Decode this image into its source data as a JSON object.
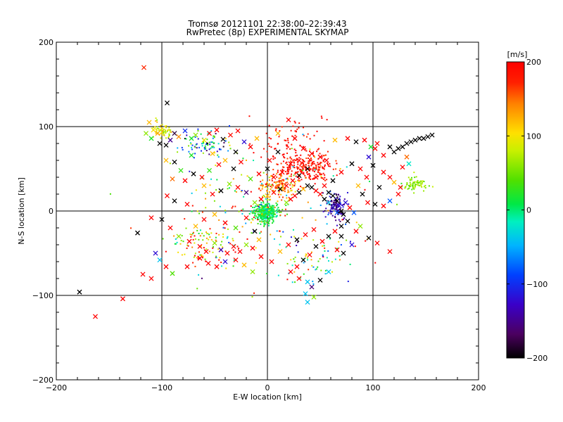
{
  "chart_data": {
    "type": "scatter",
    "title": "Tromsø 20121101 22:38:00–22:39:43",
    "subtitle": "RwPretec (8p) EXPERIMENTAL SKYMAP",
    "xlabel": "E-W location [km]",
    "ylabel": "N-S location [km]",
    "xlim": [
      -200,
      200
    ],
    "ylim": [
      -200,
      200
    ],
    "x_ticks": [
      "−200",
      "−100",
      "0",
      "100",
      "200"
    ],
    "y_ticks": [
      "−200",
      "−100",
      "0",
      "100",
      "200"
    ],
    "grid": true,
    "colorbar": {
      "label": "[m/s]",
      "range": [
        -200,
        200
      ],
      "ticks": [
        "200",
        "100",
        "0",
        "−100",
        "−200"
      ],
      "colormap": "rainbow black-purple-blue-cyan-green-yellow-red"
    },
    "markers": {
      "large": "x",
      "small": "dot"
    },
    "points": [
      [
        -117,
        170,
        170,
        1
      ],
      [
        -178,
        -96,
        -200,
        1
      ],
      [
        -163,
        -125,
        200,
        1
      ],
      [
        -137,
        -104,
        200,
        1
      ],
      [
        -123,
        -26,
        -200,
        1
      ],
      [
        -118,
        -75,
        200,
        1
      ],
      [
        -110,
        -80,
        200,
        1
      ],
      [
        -95,
        128,
        -200,
        1
      ],
      [
        -112,
        105,
        120,
        1
      ],
      [
        -108,
        96,
        100,
        1
      ],
      [
        -115,
        92,
        60,
        1
      ],
      [
        -104,
        92,
        130,
        1
      ],
      [
        -102,
        80,
        -200,
        1
      ],
      [
        -96,
        78,
        -200,
        1
      ],
      [
        -110,
        86,
        20,
        1
      ],
      [
        -92,
        84,
        -150,
        1
      ],
      [
        -88,
        92,
        -180,
        1
      ],
      [
        -84,
        88,
        140,
        1
      ],
      [
        -78,
        95,
        -100,
        1
      ],
      [
        -72,
        86,
        20,
        1
      ],
      [
        -68,
        90,
        60,
        1
      ],
      [
        -60,
        84,
        100,
        1
      ],
      [
        -55,
        92,
        200,
        1
      ],
      [
        -48,
        96,
        200,
        1
      ],
      [
        -42,
        85,
        -200,
        1
      ],
      [
        -35,
        90,
        190,
        1
      ],
      [
        -28,
        95,
        200,
        1
      ],
      [
        -22,
        82,
        -120,
        1
      ],
      [
        -96,
        60,
        120,
        1
      ],
      [
        -88,
        58,
        -200,
        1
      ],
      [
        -82,
        48,
        30,
        1
      ],
      [
        -90,
        38,
        150,
        1
      ],
      [
        -78,
        36,
        200,
        1
      ],
      [
        -70,
        44,
        -200,
        1
      ],
      [
        -62,
        40,
        200,
        1
      ],
      [
        -55,
        48,
        30,
        1
      ],
      [
        -46,
        55,
        200,
        1
      ],
      [
        -40,
        60,
        120,
        1
      ],
      [
        -32,
        50,
        -200,
        1
      ],
      [
        -25,
        58,
        200,
        1
      ],
      [
        -60,
        30,
        120,
        1
      ],
      [
        -52,
        20,
        200,
        1
      ],
      [
        -44,
        24,
        -200,
        1
      ],
      [
        -36,
        32,
        60,
        1
      ],
      [
        -28,
        28,
        200,
        1
      ],
      [
        -20,
        22,
        -160,
        1
      ],
      [
        -95,
        18,
        200,
        1
      ],
      [
        -88,
        12,
        -200,
        1
      ],
      [
        -76,
        8,
        200,
        1
      ],
      [
        -110,
        -8,
        200,
        1
      ],
      [
        -100,
        -10,
        -200,
        1
      ],
      [
        -92,
        -20,
        200,
        1
      ],
      [
        -84,
        -30,
        60,
        1
      ],
      [
        -74,
        -36,
        200,
        1
      ],
      [
        -64,
        -42,
        200,
        1
      ],
      [
        -58,
        -48,
        200,
        1
      ],
      [
        -50,
        -38,
        60,
        1
      ],
      [
        -44,
        -46,
        -140,
        1
      ],
      [
        -38,
        -50,
        200,
        1
      ],
      [
        -32,
        -42,
        200,
        1
      ],
      [
        -26,
        -48,
        200,
        1
      ],
      [
        -20,
        -40,
        60,
        1
      ],
      [
        -14,
        -44,
        200,
        1
      ],
      [
        -8,
        -34,
        120,
        1
      ],
      [
        -64,
        -56,
        200,
        1
      ],
      [
        -56,
        -62,
        200,
        1
      ],
      [
        -48,
        -66,
        200,
        1
      ],
      [
        -40,
        -60,
        -120,
        1
      ],
      [
        -30,
        -58,
        200,
        1
      ],
      [
        -22,
        -64,
        120,
        1
      ],
      [
        -14,
        -72,
        60,
        1
      ],
      [
        -76,
        -66,
        200,
        1
      ],
      [
        -96,
        -66,
        200,
        1
      ],
      [
        -102,
        -58,
        -40,
        1
      ],
      [
        -90,
        -74,
        40,
        1
      ],
      [
        -106,
        -50,
        -120,
        1
      ],
      [
        -60,
        -10,
        200,
        1
      ],
      [
        -50,
        -4,
        120,
        1
      ],
      [
        -40,
        -14,
        200,
        1
      ],
      [
        -30,
        -20,
        40,
        1
      ],
      [
        -20,
        -8,
        200,
        1
      ],
      [
        -12,
        -24,
        -200,
        1
      ],
      [
        -68,
        -18,
        120,
        1
      ],
      [
        -72,
        66,
        20,
        1
      ],
      [
        -52,
        68,
        120,
        1
      ],
      [
        -30,
        70,
        -200,
        1
      ],
      [
        -16,
        76,
        200,
        1
      ],
      [
        -10,
        86,
        120,
        1
      ],
      [
        10,
        92,
        120,
        1
      ],
      [
        20,
        108,
        200,
        1
      ],
      [
        26,
        86,
        200,
        1
      ],
      [
        34,
        74,
        200,
        1
      ],
      [
        42,
        68,
        200,
        1
      ],
      [
        50,
        64,
        200,
        1
      ],
      [
        56,
        60,
        200,
        1
      ],
      [
        30,
        60,
        200,
        1
      ],
      [
        22,
        56,
        200,
        1
      ],
      [
        14,
        46,
        200,
        1
      ],
      [
        38,
        50,
        -200,
        1
      ],
      [
        46,
        40,
        200,
        1
      ],
      [
        54,
        30,
        200,
        1
      ],
      [
        62,
        36,
        -200,
        1
      ],
      [
        70,
        46,
        200,
        1
      ],
      [
        80,
        56,
        -200,
        1
      ],
      [
        88,
        50,
        200,
        1
      ],
      [
        96,
        64,
        -120,
        1
      ],
      [
        102,
        74,
        200,
        1
      ],
      [
        110,
        66,
        200,
        1
      ],
      [
        116,
        76,
        -200,
        1
      ],
      [
        120,
        70,
        -200,
        1
      ],
      [
        124,
        74,
        -200,
        1
      ],
      [
        128,
        76,
        -200,
        1
      ],
      [
        132,
        80,
        -200,
        1
      ],
      [
        136,
        82,
        -200,
        1
      ],
      [
        140,
        84,
        -200,
        1
      ],
      [
        144,
        86,
        -200,
        1
      ],
      [
        148,
        86,
        -200,
        1
      ],
      [
        152,
        88,
        -200,
        1
      ],
      [
        156,
        90,
        -200,
        1
      ],
      [
        98,
        76,
        20,
        1
      ],
      [
        104,
        80,
        200,
        1
      ],
      [
        92,
        84,
        200,
        1
      ],
      [
        84,
        82,
        -200,
        1
      ],
      [
        76,
        86,
        200,
        1
      ],
      [
        64,
        84,
        120,
        1
      ],
      [
        132,
        64,
        150,
        1
      ],
      [
        134,
        56,
        -20,
        1
      ],
      [
        106,
        28,
        -200,
        1
      ],
      [
        102,
        8,
        -200,
        1
      ],
      [
        110,
        6,
        200,
        1
      ],
      [
        116,
        12,
        -80,
        1
      ],
      [
        124,
        20,
        200,
        1
      ],
      [
        58,
        22,
        -200,
        1
      ],
      [
        62,
        18,
        -200,
        1
      ],
      [
        66,
        12,
        -200,
        1
      ],
      [
        68,
        6,
        -120,
        1
      ],
      [
        70,
        0,
        -200,
        1
      ],
      [
        72,
        -4,
        -200,
        1
      ],
      [
        66,
        -2,
        -80,
        1
      ],
      [
        62,
        4,
        -120,
        1
      ],
      [
        58,
        10,
        -40,
        1
      ],
      [
        54,
        14,
        -200,
        1
      ],
      [
        50,
        20,
        200,
        1
      ],
      [
        46,
        24,
        200,
        1
      ],
      [
        42,
        28,
        -200,
        1
      ],
      [
        38,
        30,
        -200,
        1
      ],
      [
        34,
        26,
        120,
        1
      ],
      [
        30,
        22,
        -200,
        1
      ],
      [
        26,
        18,
        200,
        1
      ],
      [
        22,
        14,
        200,
        1
      ],
      [
        18,
        10,
        60,
        1
      ],
      [
        74,
        10,
        -120,
        1
      ],
      [
        78,
        4,
        200,
        1
      ],
      [
        82,
        -2,
        -80,
        1
      ],
      [
        76,
        -12,
        -200,
        1
      ],
      [
        70,
        -18,
        -200,
        1
      ],
      [
        64,
        -24,
        200,
        1
      ],
      [
        58,
        -30,
        -200,
        1
      ],
      [
        52,
        -36,
        200,
        1
      ],
      [
        46,
        -42,
        -200,
        1
      ],
      [
        40,
        -52,
        200,
        1
      ],
      [
        34,
        -58,
        -200,
        1
      ],
      [
        28,
        -66,
        200,
        1
      ],
      [
        22,
        -72,
        200,
        1
      ],
      [
        72,
        -50,
        -200,
        1
      ],
      [
        66,
        -46,
        200,
        1
      ],
      [
        80,
        -40,
        -120,
        1
      ],
      [
        70,
        -30,
        -200,
        1
      ],
      [
        84,
        -24,
        200,
        1
      ],
      [
        88,
        -18,
        60,
        1
      ],
      [
        96,
        -32,
        -200,
        1
      ],
      [
        104,
        -38,
        200,
        1
      ],
      [
        116,
        -48,
        200,
        1
      ],
      [
        58,
        -72,
        -40,
        1
      ],
      [
        50,
        -82,
        -200,
        1
      ],
      [
        42,
        -90,
        -160,
        1
      ],
      [
        36,
        -98,
        -40,
        1
      ],
      [
        38,
        -84,
        -40,
        1
      ],
      [
        30,
        -80,
        200,
        1
      ],
      [
        44,
        -102,
        60,
        1
      ],
      [
        38,
        -108,
        -40,
        1
      ],
      [
        4,
        -60,
        200,
        1
      ],
      [
        -6,
        -54,
        200,
        1
      ],
      [
        12,
        -48,
        120,
        1
      ],
      [
        20,
        -40,
        200,
        1
      ],
      [
        28,
        -34,
        -200,
        1
      ],
      [
        36,
        -28,
        200,
        1
      ],
      [
        44,
        -22,
        200,
        1
      ],
      [
        30,
        42,
        -200,
        1
      ],
      [
        24,
        36,
        200,
        1
      ],
      [
        18,
        30,
        200,
        1
      ],
      [
        12,
        26,
        -200,
        1
      ],
      [
        6,
        22,
        200,
        1
      ],
      [
        0,
        18,
        120,
        1
      ],
      [
        -6,
        14,
        200,
        1
      ],
      [
        -12,
        10,
        60,
        1
      ],
      [
        6,
        40,
        200,
        1
      ],
      [
        0,
        50,
        -200,
        1
      ],
      [
        -8,
        44,
        200,
        1
      ],
      [
        -16,
        38,
        40,
        1
      ],
      [
        2,
        60,
        200,
        1
      ],
      [
        10,
        70,
        -200,
        1
      ],
      [
        116,
        40,
        200,
        1
      ],
      [
        120,
        34,
        120,
        1
      ],
      [
        126,
        28,
        200,
        1
      ],
      [
        110,
        46,
        200,
        1
      ],
      [
        100,
        54,
        -200,
        1
      ],
      [
        94,
        40,
        200,
        1
      ],
      [
        86,
        30,
        120,
        1
      ],
      [
        90,
        20,
        -200,
        1
      ],
      [
        95,
        10,
        200,
        1
      ],
      [
        128,
        52,
        200,
        1
      ]
    ]
  }
}
